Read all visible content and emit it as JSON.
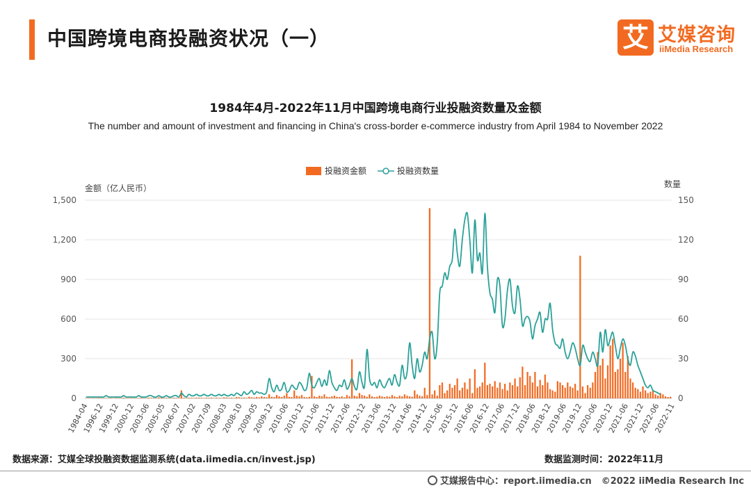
{
  "header": {
    "title": "中国跨境电商投融资状况（一）",
    "logo_mark": "艾",
    "logo_cn": "艾媒咨询",
    "logo_en": "iiMedia Research"
  },
  "colors": {
    "accent": "#f26a21",
    "bar": "#f26a21",
    "line": "#2aa198"
  },
  "chart_data": {
    "type": "bar+line",
    "title": "1984年4月-2022年11月中国跨境电商行业投融资数量及金额",
    "subtitle": "The number and amount of investment and financing in China's cross-border e-commerce industry from April 1984 to November 2022",
    "y_left_label": "金额（亿人民币）",
    "y_right_label": "数量",
    "y_left_range": [
      0,
      1500
    ],
    "y_right_range": [
      0,
      150
    ],
    "y_left_ticks": [
      "0",
      "300",
      "600",
      "900",
      "1,200",
      "1,500"
    ],
    "y_right_ticks": [
      "0",
      "30",
      "60",
      "90",
      "120",
      "150"
    ],
    "x_tick_labels": [
      "1984-04",
      "1996-12",
      "1999-12",
      "2000-12",
      "2003-06",
      "2005-05",
      "2006-07",
      "2007-02",
      "2007-09",
      "2008-03",
      "2008-10",
      "2009-05",
      "2009-12",
      "2010-06",
      "2010-12",
      "2011-06",
      "2011-12",
      "2012-06",
      "2012-12",
      "2013-06",
      "2013-12",
      "2014-06",
      "2014-12",
      "2015-06",
      "2015-12",
      "2016-06",
      "2016-12",
      "2017-06",
      "2017-12",
      "2018-06",
      "2018-12",
      "2019-06",
      "2019-12",
      "2020-06",
      "2020-12",
      "2021-06",
      "2021-12",
      "2022-06",
      "2022-11"
    ],
    "legend": {
      "bar_series": "投融资金额",
      "line_series": "投融资数量",
      "placement": "top-center"
    },
    "grid": "horizontal",
    "series": [
      {
        "name": "投融资金额",
        "kind": "bar",
        "values": [
          2,
          3,
          2,
          3,
          2,
          4,
          3,
          2,
          3,
          2,
          3,
          2,
          4,
          3,
          2,
          5,
          3,
          2,
          4,
          3,
          2,
          3,
          4,
          3,
          2,
          5,
          4,
          3,
          2,
          8,
          5,
          3,
          4,
          3,
          2,
          5,
          4,
          3,
          60,
          4,
          3,
          5,
          4,
          3,
          6,
          5,
          4,
          3,
          5,
          4,
          6,
          3,
          5,
          4,
          3,
          8,
          6,
          4,
          5,
          3,
          10,
          8,
          5,
          6,
          4,
          12,
          8,
          6,
          10,
          7,
          15,
          10,
          8,
          30,
          12,
          10,
          25,
          15,
          10,
          20,
          40,
          12,
          10,
          60,
          20,
          15,
          25,
          10,
          8,
          12,
          170,
          15,
          10,
          20,
          15,
          30,
          12,
          10,
          15,
          20,
          12,
          10,
          15,
          8,
          25,
          15,
          295,
          20,
          15,
          40,
          25,
          20,
          12,
          30,
          15,
          10,
          12,
          20,
          15,
          10,
          15,
          12,
          25,
          15,
          10,
          20,
          15,
          30,
          20,
          15,
          12,
          60,
          30,
          20,
          15,
          80,
          25,
          1440,
          30,
          60,
          20,
          100,
          120,
          40,
          60,
          110,
          80,
          100,
          150,
          60,
          80,
          120,
          70,
          150,
          40,
          220,
          80,
          90,
          120,
          270,
          100,
          110,
          90,
          130,
          80,
          120,
          70,
          110,
          60,
          120,
          100,
          150,
          90,
          160,
          240,
          100,
          200,
          170,
          120,
          200,
          90,
          140,
          100,
          180,
          120,
          70,
          60,
          50,
          130,
          120,
          100,
          80,
          120,
          90,
          80,
          110,
          60,
          1080,
          90,
          40,
          100,
          80,
          120,
          200,
          350,
          250,
          300,
          150,
          250,
          400,
          450,
          200,
          220,
          300,
          420,
          200,
          320,
          150,
          120,
          80,
          70,
          50,
          90,
          60,
          40,
          50,
          60,
          30,
          20,
          40,
          30,
          15,
          10,
          12
        ]
      },
      {
        "name": "投融资数量",
        "kind": "line",
        "values": [
          1,
          1,
          1,
          1,
          1,
          1,
          1,
          1,
          2,
          1,
          1,
          1,
          1,
          1,
          1,
          2,
          1,
          1,
          1,
          1,
          1,
          2,
          1,
          1,
          1,
          2,
          2,
          1,
          1,
          2,
          1,
          1,
          2,
          1,
          1,
          2,
          2,
          1,
          4,
          2,
          1,
          3,
          2,
          2,
          3,
          2,
          2,
          3,
          2,
          2,
          3,
          2,
          2,
          3,
          2,
          3,
          2,
          2,
          3,
          2,
          4,
          3,
          2,
          5,
          3,
          4,
          6,
          3,
          5,
          4,
          4,
          3,
          5,
          15,
          8,
          5,
          10,
          6,
          7,
          12,
          5,
          6,
          10,
          8,
          7,
          12,
          10,
          6,
          8,
          19,
          10,
          8,
          12,
          15,
          9,
          14,
          10,
          21,
          12,
          8,
          6,
          10,
          9,
          14,
          7,
          10,
          15,
          9,
          7,
          20,
          12,
          9,
          37,
          15,
          10,
          12,
          8,
          14,
          10,
          8,
          12,
          15,
          10,
          18,
          12,
          10,
          25,
          15,
          20,
          42,
          25,
          15,
          30,
          20,
          25,
          35,
          30,
          45,
          50,
          30,
          42,
          80,
          85,
          95,
          90,
          100,
          105,
          128,
          110,
          100,
          120,
          135,
          140,
          120,
          95,
          135,
          105,
          110,
          95,
          140,
          100,
          80,
          75,
          65,
          90,
          85,
          55,
          60,
          82,
          90,
          70,
          65,
          85,
          75,
          55,
          60,
          62,
          58,
          45,
          55,
          60,
          65,
          50,
          60,
          60,
          72,
          52,
          42,
          40,
          38,
          45,
          35,
          30,
          35,
          42,
          38,
          30,
          25,
          40,
          35,
          30,
          28,
          35,
          30,
          25,
          50,
          35,
          52,
          40,
          45,
          50,
          40,
          30,
          38,
          45,
          40,
          30,
          25,
          35,
          32,
          25,
          20,
          15,
          10,
          8,
          10,
          6,
          5,
          4,
          3
        ]
      }
    ]
  },
  "footer": {
    "source": "数据来源：艾媒全球投融资数据监测系统(data.iimedia.cn/invest.jsp)",
    "monitor_time": "数据监测时间：2022年11月",
    "report_center": "艾媒报告中心：report.iimedia.cn",
    "copyright": "©2022  iiMedia Research  Inc"
  }
}
